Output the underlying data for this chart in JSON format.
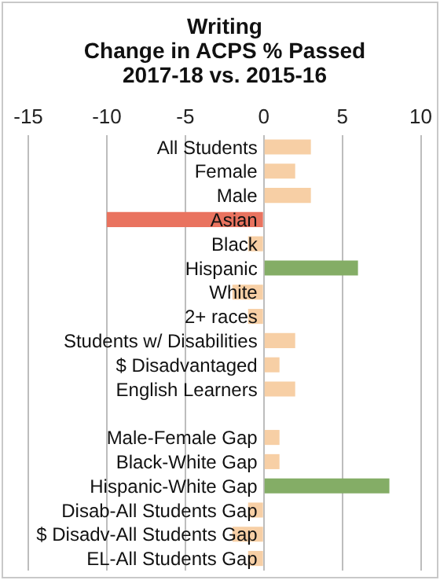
{
  "chart_data": {
    "type": "bar",
    "orientation": "horizontal",
    "title": "Writing\nChange in ACPS % Passed\n2017-18 vs. 2015-16",
    "categories": [
      "All Students",
      "Female",
      "Male",
      "Asian",
      "Black",
      "Hispanic",
      "White",
      "2+ races",
      "Students w/ Disabilities",
      "$ Disadvantaged",
      "English Learners",
      null,
      "Male-Female Gap",
      "Black-White Gap",
      "Hispanic-White Gap",
      "Disab-All Students Gap",
      "$ Disadv-All Students Gap",
      "EL-All Students Gap"
    ],
    "values": [
      3,
      2,
      3,
      -10,
      -1,
      6,
      -2,
      -1,
      2,
      1,
      2,
      null,
      1,
      1,
      8,
      -1,
      -2,
      -1
    ],
    "colors": [
      "#f7cfa5",
      "#f7cfa5",
      "#f7cfa5",
      "#e9735f",
      "#f7cfa5",
      "#84ad66",
      "#f7cfa5",
      "#f7cfa5",
      "#f7cfa5",
      "#f7cfa5",
      "#f7cfa5",
      "#f7cfa5",
      "#f7cfa5",
      "#f7cfa5",
      "#84ad66",
      "#f7cfa5",
      "#f7cfa5",
      "#f7cfa5"
    ],
    "xlim": [
      -15,
      10
    ],
    "xticks": [
      -15,
      -10,
      -5,
      0,
      5,
      10
    ],
    "grid": "x",
    "legend": false
  }
}
